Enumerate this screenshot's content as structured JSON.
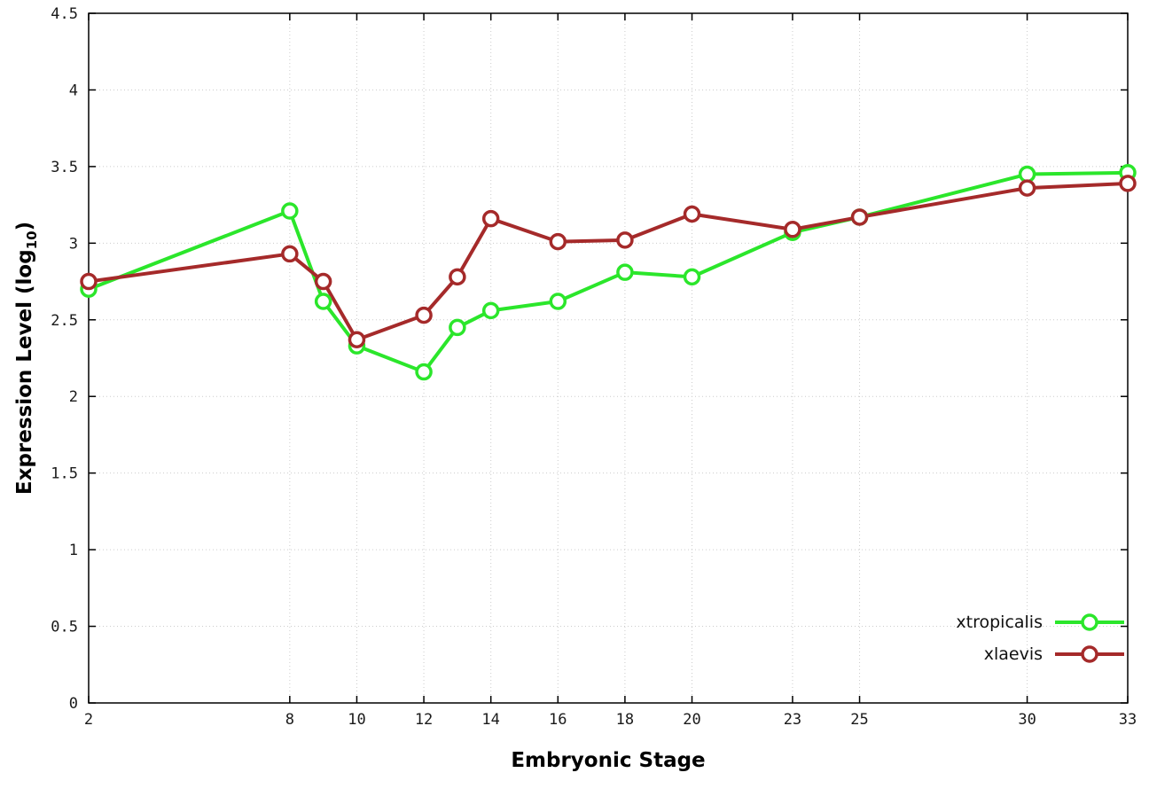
{
  "chart_data": {
    "type": "line",
    "title": "",
    "xlabel": "Embryonic Stage",
    "ylabel": "Expression Level (log10)",
    "ylabel_parts": {
      "prefix": "Expression Level (log",
      "sub": "10",
      "suffix": ")"
    },
    "x": [
      2,
      8,
      9,
      10,
      12,
      13,
      14,
      16,
      18,
      20,
      23,
      25,
      30,
      33
    ],
    "xticks": [
      2,
      8,
      10,
      12,
      14,
      16,
      18,
      20,
      23,
      25,
      30,
      33
    ],
    "yticks": [
      0,
      0.5,
      1,
      1.5,
      2,
      2.5,
      3,
      3.5,
      4,
      4.5
    ],
    "xlim": [
      2,
      33
    ],
    "ylim": [
      0,
      4.5
    ],
    "grid": true,
    "grid_color": "#cccccc",
    "axis_color": "#000000",
    "legend_position": "bottom-right-inside",
    "series": [
      {
        "name": "xtropicalis",
        "color": "#2be62b",
        "values": [
          2.7,
          3.21,
          2.62,
          2.33,
          2.16,
          2.45,
          2.56,
          2.62,
          2.81,
          2.78,
          3.07,
          3.17,
          3.45,
          3.46
        ]
      },
      {
        "name": "xlaevis",
        "color": "#a52a2a",
        "values": [
          2.75,
          2.93,
          2.75,
          2.37,
          2.53,
          2.78,
          3.16,
          3.01,
          3.02,
          3.19,
          3.09,
          3.17,
          3.36,
          3.39
        ]
      }
    ]
  }
}
